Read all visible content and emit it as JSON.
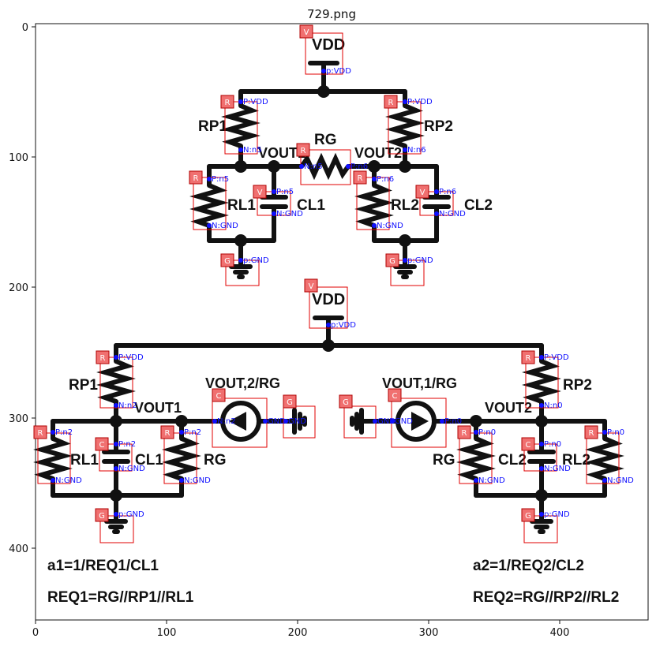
{
  "title": "729.png",
  "axes": {
    "x_ticks": [
      "0",
      "100",
      "200",
      "300",
      "400"
    ],
    "y_ticks": [
      "0",
      "100",
      "200",
      "300",
      "400"
    ]
  },
  "schematic_labels": {
    "vdd_top": "VDD",
    "rp1_top": "RP1",
    "rp2_top": "RP2",
    "rg_top": "RG",
    "vout1_top": "VOUT1",
    "vout2_top": "VOUT2",
    "rl1_top": "RL1",
    "cl1_top": "CL1",
    "rl2_top": "RL2",
    "cl2_top": "CL2",
    "vdd_bottom": "VDD",
    "rp1_bottom": "RP1",
    "rp2_bottom": "RP2",
    "vout1_bottom": "VOUT1",
    "vout2_bottom": "VOUT2",
    "src_left": "VOUT,2/RG",
    "src_right": "VOUT,1/RG",
    "rl1_bottom": "RL1",
    "cl1_bottom": "CL1",
    "rg_bottom_left": "RG",
    "rg_bottom_right": "RG",
    "cl2_bottom": "CL2",
    "rl2_bottom": "RL2",
    "eq_a1": "a1=1/REQ1/CL1",
    "eq_req1": "REQ1=RG//RP1//RL1",
    "eq_a2": "a2=1/REQ2/CL2",
    "eq_req2": "REQ2=RG//RP2//RL2"
  },
  "annotations": {
    "tags": [
      {
        "type": "V"
      },
      {
        "type": "R"
      },
      {
        "type": "R"
      },
      {
        "type": "R"
      },
      {
        "type": "R"
      },
      {
        "type": "V"
      },
      {
        "type": "R"
      },
      {
        "type": "V"
      },
      {
        "type": "G"
      },
      {
        "type": "G"
      },
      {
        "type": "V"
      },
      {
        "type": "R"
      },
      {
        "type": "R"
      },
      {
        "type": "C"
      },
      {
        "type": "G"
      },
      {
        "type": "G"
      },
      {
        "type": "C"
      },
      {
        "type": "R"
      },
      {
        "type": "C"
      },
      {
        "type": "R"
      },
      {
        "type": "R"
      },
      {
        "type": "C"
      },
      {
        "type": "R"
      },
      {
        "type": "G"
      },
      {
        "type": "G"
      }
    ],
    "ports": [
      "p:VDD",
      "P:VDD",
      "N:n5",
      "P:VDD",
      "N:n6",
      "N:n5",
      "P:n6",
      "P:n5",
      "N:GND",
      "P:n6",
      "N:GND",
      "P:n5",
      "N:GND",
      "P:n6",
      "N:GND",
      "p:GND",
      "p:GND",
      "p:VDD",
      "P:VDD",
      "N:n2",
      "P:VDD",
      "N:n0",
      "N:n2",
      "GND",
      "GND",
      "GND",
      "GND",
      "P:n0",
      "P:n2",
      "N:GND",
      "P:n2",
      "N:GND",
      "P:n2",
      "N:GND",
      "P:n0",
      "N:GND",
      "P:n0",
      "N:GND",
      "P:n0",
      "N:GND",
      "p:GND",
      "p:GND"
    ]
  }
}
